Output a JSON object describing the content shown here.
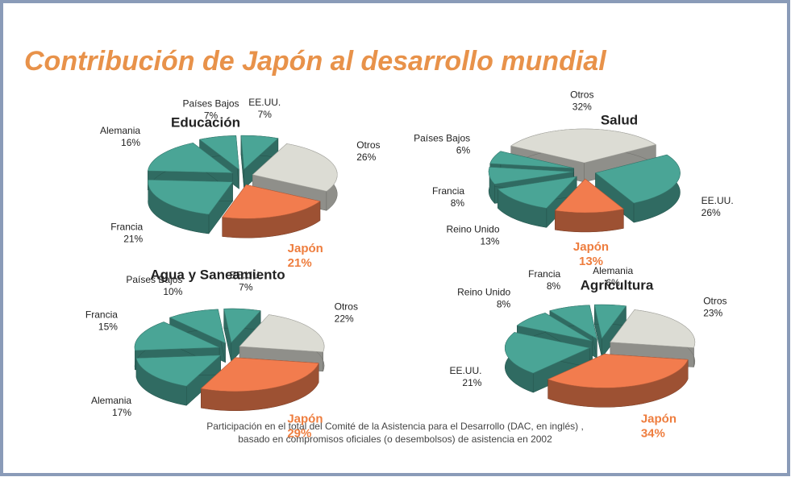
{
  "title": "Contribución de Japón al desarrollo mundial",
  "caption": [
    "Participación en el total del Comité de la Asistencia para el Desarrollo (DAC, en inglés) ,",
    "basado en compromisos oficiales (o desembolsos) de asistencia en 2002"
  ],
  "chart_data": [
    {
      "type": "pie",
      "title": "Educación",
      "categories": [
        "EE.UU.",
        "Otros",
        "Japón",
        "Francia",
        "Alemania",
        "Países Bajos"
      ],
      "values": [
        7,
        26,
        21,
        21,
        16,
        7
      ],
      "value_labels": [
        "7%",
        "26%",
        "21%",
        "21%",
        "16%",
        "7%"
      ],
      "colors": [
        "#4aa596",
        "#dcdcd4",
        "#f27c4e",
        "#4aa596",
        "#4aa596",
        "#4aa596"
      ]
    },
    {
      "type": "pie",
      "title": "Salud",
      "categories": [
        "Otros",
        "EE.UU.",
        "Japón",
        "Reino Unido",
        "Francia",
        "Países Bajos"
      ],
      "values": [
        32,
        26,
        13,
        13,
        8,
        6
      ],
      "value_labels": [
        "32%",
        "26%",
        "13%",
        "13%",
        "8%",
        "6%"
      ],
      "colors": [
        "#dcdcd4",
        "#4aa596",
        "#f27c4e",
        "#4aa596",
        "#4aa596",
        "#4aa596"
      ]
    },
    {
      "type": "pie",
      "title": "Agua y Saneamiento",
      "categories": [
        "EE.UU.",
        "Otros",
        "Japón",
        "Alemania",
        "Francia",
        "Países Bajos"
      ],
      "values": [
        7,
        22,
        29,
        17,
        15,
        10
      ],
      "value_labels": [
        "7%",
        "22%",
        "29%",
        "17%",
        "15%",
        "10%"
      ],
      "colors": [
        "#4aa596",
        "#dcdcd4",
        "#f27c4e",
        "#4aa596",
        "#4aa596",
        "#4aa596"
      ]
    },
    {
      "type": "pie",
      "title": "Agricultura",
      "categories": [
        "Alemania",
        "Otros",
        "Japón",
        "EE.UU.",
        "Reino Unido",
        "Francia"
      ],
      "values": [
        6,
        23,
        34,
        21,
        8,
        8
      ],
      "value_labels": [
        "6%",
        "23%",
        "34%",
        "21%",
        "8%",
        "8%"
      ],
      "colors": [
        "#4aa596",
        "#dcdcd4",
        "#f27c4e",
        "#4aa596",
        "#4aa596",
        "#4aa596"
      ]
    }
  ]
}
